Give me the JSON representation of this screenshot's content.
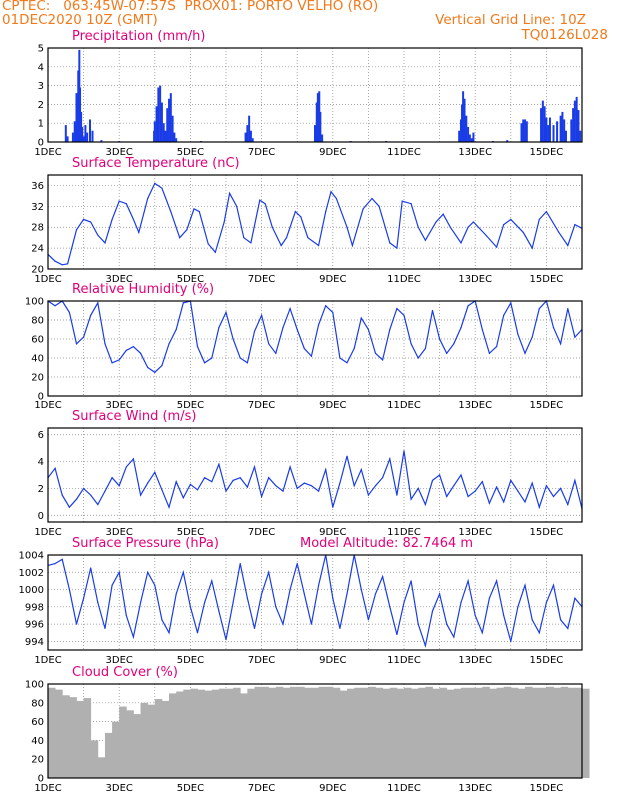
{
  "header": {
    "source": "CPTEC:",
    "coords": "063:45W-07:57S",
    "location": "PROX01: PORTO VELHO (RO)",
    "init_time": "01DEC2020 10Z (GMT)",
    "grid_note": "Vertical Grid Line: 10Z",
    "model_code": "TQ0126L028"
  },
  "colors": {
    "header": "#f07a1c",
    "title": "#e0007a",
    "series": "#1a3ce6",
    "cloud": "#b0b0b0",
    "grid": "#888888"
  },
  "xaxis": {
    "days": [
      1,
      2,
      3,
      4,
      5,
      6,
      7,
      8,
      9,
      10,
      11,
      12,
      13,
      14,
      15,
      16
    ],
    "tick_labels": [
      "1DEC",
      "3DEC",
      "5DEC",
      "7DEC",
      "9DEC",
      "11DEC",
      "13DEC",
      "15DEC"
    ],
    "tick_days": [
      1,
      3,
      5,
      7,
      9,
      11,
      13,
      15
    ],
    "range": [
      1,
      16
    ]
  },
  "chart_data": [
    {
      "type": "bar",
      "title": "Precipitation (mm/h)",
      "ylim": [
        0,
        5
      ],
      "yticks": [
        0,
        1,
        2,
        3,
        4,
        5
      ],
      "points": [
        [
          1.5,
          0.9
        ],
        [
          1.55,
          0.3
        ],
        [
          1.7,
          0.5
        ],
        [
          1.75,
          1.1
        ],
        [
          1.8,
          2.6
        ],
        [
          1.82,
          1.9
        ],
        [
          1.85,
          3.8
        ],
        [
          1.88,
          4.9
        ],
        [
          1.9,
          2.9
        ],
        [
          1.93,
          1.6
        ],
        [
          1.96,
          0.8
        ],
        [
          2.0,
          0.3
        ],
        [
          2.05,
          0.9
        ],
        [
          2.1,
          0.5
        ],
        [
          2.18,
          1.2
        ],
        [
          2.25,
          0.6
        ],
        [
          2.5,
          0.1
        ],
        [
          3.0,
          0.05
        ],
        [
          3.98,
          0.6
        ],
        [
          4.0,
          1.1
        ],
        [
          4.05,
          1.9
        ],
        [
          4.1,
          2.9
        ],
        [
          4.15,
          3.0
        ],
        [
          4.2,
          2.1
        ],
        [
          4.25,
          1.0
        ],
        [
          4.3,
          0.6
        ],
        [
          4.35,
          1.8
        ],
        [
          4.4,
          2.3
        ],
        [
          4.45,
          2.6
        ],
        [
          4.5,
          1.4
        ],
        [
          4.55,
          0.5
        ],
        [
          4.6,
          0.2
        ],
        [
          5.3,
          0.05
        ],
        [
          6.55,
          0.5
        ],
        [
          6.6,
          0.9
        ],
        [
          6.65,
          1.4
        ],
        [
          6.7,
          0.6
        ],
        [
          6.75,
          0.2
        ],
        [
          8.5,
          0.9
        ],
        [
          8.55,
          2.1
        ],
        [
          8.58,
          2.6
        ],
        [
          8.62,
          2.7
        ],
        [
          8.65,
          1.6
        ],
        [
          8.7,
          0.4
        ],
        [
          9.5,
          0.05
        ],
        [
          10.5,
          0.05
        ],
        [
          12.55,
          0.6
        ],
        [
          12.6,
          1.2
        ],
        [
          12.63,
          2.0
        ],
        [
          12.66,
          2.7
        ],
        [
          12.7,
          2.3
        ],
        [
          12.75,
          1.4
        ],
        [
          12.8,
          0.8
        ],
        [
          12.85,
          0.4
        ],
        [
          12.9,
          0.2
        ],
        [
          12.95,
          0.5
        ],
        [
          13.5,
          0.05
        ],
        [
          13.9,
          0.1
        ],
        [
          14.3,
          1.0
        ],
        [
          14.35,
          1.2
        ],
        [
          14.4,
          1.2
        ],
        [
          14.45,
          1.1
        ],
        [
          14.85,
          1.8
        ],
        [
          14.9,
          2.2
        ],
        [
          14.95,
          1.9
        ],
        [
          15.0,
          1.3
        ],
        [
          15.05,
          0.9
        ],
        [
          15.1,
          1.3
        ],
        [
          15.2,
          0.9
        ],
        [
          15.3,
          1.1
        ],
        [
          15.4,
          1.4
        ],
        [
          15.45,
          1.6
        ],
        [
          15.5,
          1.2
        ],
        [
          15.55,
          0.6
        ],
        [
          15.7,
          1.2
        ],
        [
          15.75,
          1.8
        ],
        [
          15.8,
          2.2
        ],
        [
          15.85,
          2.4
        ],
        [
          15.9,
          1.7
        ],
        [
          15.95,
          0.6
        ]
      ]
    },
    {
      "type": "line",
      "title": "Surface Temperature (nC)",
      "ylim": [
        20,
        38
      ],
      "yticks": [
        20,
        24,
        28,
        32,
        36
      ],
      "x": [
        1.0,
        1.2,
        1.4,
        1.55,
        1.8,
        2.0,
        2.2,
        2.4,
        2.6,
        2.8,
        3.0,
        3.2,
        3.4,
        3.55,
        3.8,
        4.0,
        4.2,
        4.45,
        4.7,
        4.9,
        5.1,
        5.25,
        5.5,
        5.7,
        5.95,
        6.1,
        6.3,
        6.5,
        6.7,
        6.95,
        7.1,
        7.3,
        7.55,
        7.7,
        7.95,
        8.1,
        8.3,
        8.6,
        8.8,
        8.95,
        9.1,
        9.4,
        9.55,
        9.85,
        10.1,
        10.3,
        10.6,
        10.8,
        10.95,
        11.2,
        11.4,
        11.6,
        11.9,
        12.1,
        12.3,
        12.6,
        12.8,
        12.95,
        13.3,
        13.6,
        13.8,
        14.0,
        14.35,
        14.6,
        14.8,
        15.0,
        15.35,
        15.6,
        15.8,
        16.0
      ],
      "values": [
        22.8,
        21.5,
        20.8,
        21.0,
        27.5,
        29.5,
        29.0,
        26.5,
        25.0,
        29.5,
        33.0,
        32.5,
        29.5,
        27.0,
        33.5,
        36.4,
        35.5,
        31.0,
        26.0,
        27.5,
        31.5,
        31.0,
        24.8,
        23.2,
        29.0,
        34.5,
        32.0,
        26.0,
        25.0,
        33.2,
        32.5,
        28.0,
        24.5,
        26.0,
        31.0,
        30.0,
        26.0,
        24.5,
        31.0,
        34.8,
        33.5,
        28.0,
        24.5,
        31.5,
        33.5,
        32.0,
        25.0,
        24.0,
        33.0,
        32.5,
        28.0,
        25.5,
        29.0,
        30.5,
        28.0,
        25.0,
        28.0,
        29.0,
        26.5,
        24.2,
        28.5,
        29.5,
        27.0,
        24.0,
        29.5,
        31.0,
        27.0,
        24.5,
        28.5,
        27.8
      ]
    },
    {
      "type": "line",
      "title": "Relative Humidity (%)",
      "ylim": [
        0,
        100
      ],
      "yticks": [
        0,
        20,
        40,
        60,
        80,
        100
      ],
      "x": [
        1.0,
        1.2,
        1.4,
        1.6,
        1.8,
        2.0,
        2.2,
        2.4,
        2.6,
        2.8,
        3.0,
        3.2,
        3.4,
        3.6,
        3.8,
        4.0,
        4.2,
        4.4,
        4.6,
        4.8,
        5.0,
        5.2,
        5.4,
        5.6,
        5.8,
        6.0,
        6.2,
        6.4,
        6.6,
        6.8,
        7.0,
        7.2,
        7.4,
        7.6,
        7.8,
        8.0,
        8.2,
        8.4,
        8.6,
        8.8,
        9.0,
        9.2,
        9.4,
        9.6,
        9.8,
        10.0,
        10.2,
        10.4,
        10.6,
        10.8,
        11.0,
        11.2,
        11.4,
        11.6,
        11.8,
        12.0,
        12.2,
        12.4,
        12.6,
        12.8,
        13.0,
        13.2,
        13.4,
        13.6,
        13.8,
        14.0,
        14.2,
        14.4,
        14.6,
        14.8,
        15.0,
        15.2,
        15.4,
        15.6,
        15.8,
        16.0
      ],
      "values": [
        100,
        95,
        100,
        88,
        55,
        62,
        85,
        98,
        55,
        35,
        38,
        48,
        52,
        45,
        30,
        25,
        32,
        55,
        70,
        98,
        100,
        52,
        35,
        40,
        72,
        88,
        60,
        40,
        35,
        68,
        85,
        55,
        45,
        72,
        92,
        70,
        50,
        42,
        75,
        95,
        88,
        40,
        35,
        50,
        82,
        70,
        45,
        38,
        70,
        92,
        85,
        55,
        40,
        50,
        90,
        60,
        45,
        55,
        72,
        95,
        100,
        70,
        45,
        52,
        85,
        98,
        65,
        45,
        62,
        92,
        100,
        72,
        55,
        92,
        62,
        70
      ]
    },
    {
      "type": "line",
      "title": "Surface Wind (m/s)",
      "ylim": [
        -0.5,
        6.5
      ],
      "yticks": [
        0,
        2,
        4,
        6
      ],
      "x": [
        1.0,
        1.2,
        1.4,
        1.6,
        1.8,
        2.0,
        2.2,
        2.4,
        2.6,
        2.8,
        3.0,
        3.2,
        3.4,
        3.6,
        3.8,
        4.0,
        4.2,
        4.4,
        4.6,
        4.8,
        5.0,
        5.2,
        5.4,
        5.6,
        5.8,
        6.0,
        6.2,
        6.4,
        6.6,
        6.8,
        7.0,
        7.2,
        7.4,
        7.6,
        7.8,
        8.0,
        8.2,
        8.4,
        8.6,
        8.8,
        9.0,
        9.2,
        9.4,
        9.6,
        9.8,
        10.0,
        10.2,
        10.4,
        10.6,
        10.8,
        11.0,
        11.2,
        11.4,
        11.6,
        11.8,
        12.0,
        12.2,
        12.4,
        12.6,
        12.8,
        13.0,
        13.2,
        13.4,
        13.6,
        13.8,
        14.0,
        14.2,
        14.4,
        14.6,
        14.8,
        15.0,
        15.2,
        15.4,
        15.6,
        15.8,
        16.0
      ],
      "values": [
        2.8,
        3.5,
        1.5,
        0.6,
        1.2,
        2.0,
        1.5,
        0.8,
        1.8,
        2.8,
        2.2,
        3.6,
        4.2,
        1.5,
        2.4,
        3.2,
        1.9,
        0.6,
        2.5,
        1.3,
        2.3,
        1.9,
        2.8,
        2.5,
        3.8,
        1.8,
        2.6,
        2.8,
        2.1,
        3.6,
        1.4,
        2.8,
        2.2,
        1.8,
        3.6,
        2.0,
        2.4,
        2.2,
        1.8,
        3.4,
        0.6,
        2.4,
        4.4,
        2.2,
        3.4,
        1.5,
        2.2,
        2.8,
        4.2,
        1.5,
        4.8,
        1.2,
        2.0,
        0.8,
        2.6,
        3.0,
        1.4,
        2.2,
        3.0,
        1.4,
        1.8,
        2.5,
        0.9,
        2.1,
        1.0,
        2.6,
        1.8,
        1.0,
        2.4,
        0.6,
        2.2,
        1.4,
        2.0,
        0.8,
        2.6,
        0.5
      ]
    },
    {
      "type": "line",
      "title": "Surface Pressure (hPa)",
      "annotation": "Model Altitude: 82.7464 m",
      "ylim": [
        993,
        1004
      ],
      "yticks": [
        994,
        996,
        998,
        1000,
        1002,
        1004
      ],
      "x": [
        1.0,
        1.2,
        1.4,
        1.6,
        1.8,
        2.0,
        2.2,
        2.4,
        2.6,
        2.8,
        3.0,
        3.2,
        3.4,
        3.6,
        3.8,
        4.0,
        4.2,
        4.4,
        4.6,
        4.8,
        5.0,
        5.2,
        5.4,
        5.6,
        5.8,
        6.0,
        6.2,
        6.4,
        6.6,
        6.8,
        7.0,
        7.2,
        7.4,
        7.6,
        7.8,
        8.0,
        8.2,
        8.4,
        8.6,
        8.8,
        9.0,
        9.2,
        9.4,
        9.6,
        9.8,
        10.0,
        10.2,
        10.4,
        10.6,
        10.8,
        11.0,
        11.2,
        11.4,
        11.6,
        11.8,
        12.0,
        12.2,
        12.4,
        12.6,
        12.8,
        13.0,
        13.2,
        13.4,
        13.6,
        13.8,
        14.0,
        14.2,
        14.4,
        14.6,
        14.8,
        15.0,
        15.2,
        15.4,
        15.6,
        15.8,
        16.0
      ],
      "values": [
        1002.8,
        1003.0,
        1003.5,
        1000.0,
        996.0,
        999.0,
        1002.5,
        998.5,
        995.5,
        1000.5,
        1002.0,
        997.0,
        994.5,
        998.5,
        1002.0,
        1000.5,
        996.5,
        995.0,
        999.5,
        1002.0,
        998.0,
        995.0,
        998.5,
        1001.0,
        997.5,
        994.2,
        998.5,
        1003.0,
        999.0,
        995.5,
        999.5,
        1002.0,
        998.0,
        996.0,
        1000.0,
        1003.0,
        999.5,
        996.0,
        1000.5,
        1004.2,
        999.0,
        995.5,
        999.5,
        1004.0,
        1000.0,
        996.5,
        999.5,
        1001.5,
        998.0,
        994.8,
        998.5,
        1001.0,
        996.0,
        993.5,
        997.5,
        999.5,
        996.0,
        994.5,
        998.5,
        1001.0,
        997.0,
        995.0,
        999.0,
        1001.0,
        997.0,
        994.0,
        998.0,
        1000.5,
        996.5,
        995.0,
        998.5,
        1000.5,
        996.5,
        995.5,
        999.0,
        998.0
      ]
    },
    {
      "type": "bar",
      "title": "Cloud Cover (%)",
      "ylim": [
        0,
        100
      ],
      "yticks": [
        0,
        20,
        40,
        60,
        80,
        100
      ],
      "x": [
        1.0,
        1.2,
        1.4,
        1.6,
        1.8,
        2.0,
        2.2,
        2.4,
        2.6,
        2.8,
        3.0,
        3.2,
        3.4,
        3.6,
        3.8,
        4.0,
        4.2,
        4.4,
        4.6,
        4.8,
        5.0,
        5.2,
        5.4,
        5.6,
        5.8,
        6.0,
        6.2,
        6.4,
        6.6,
        6.8,
        7.0,
        7.2,
        7.4,
        7.6,
        7.8,
        8.0,
        8.2,
        8.4,
        8.6,
        8.8,
        9.0,
        9.2,
        9.4,
        9.6,
        9.8,
        10.0,
        10.2,
        10.4,
        10.6,
        10.8,
        11.0,
        11.2,
        11.4,
        11.6,
        11.8,
        12.0,
        12.2,
        12.4,
        12.6,
        12.8,
        13.0,
        13.2,
        13.4,
        13.6,
        13.8,
        14.0,
        14.2,
        14.4,
        14.6,
        14.8,
        15.0,
        15.2,
        15.4,
        15.6,
        15.8,
        16.0
      ],
      "values": [
        96,
        94,
        88,
        86,
        82,
        85,
        40,
        22,
        48,
        60,
        76,
        72,
        68,
        80,
        78,
        84,
        82,
        90,
        92,
        94,
        95,
        94,
        93,
        94,
        95,
        95,
        96,
        90,
        95,
        97,
        97,
        96,
        97,
        96,
        97,
        97,
        96,
        96,
        97,
        97,
        96,
        93,
        95,
        96,
        96,
        97,
        96,
        95,
        96,
        95,
        96,
        95,
        96,
        97,
        95,
        96,
        94,
        95,
        96,
        96,
        96,
        97,
        95,
        96,
        97,
        96,
        95,
        97,
        96,
        96,
        97,
        96,
        97,
        96,
        96,
        95
      ]
    }
  ]
}
